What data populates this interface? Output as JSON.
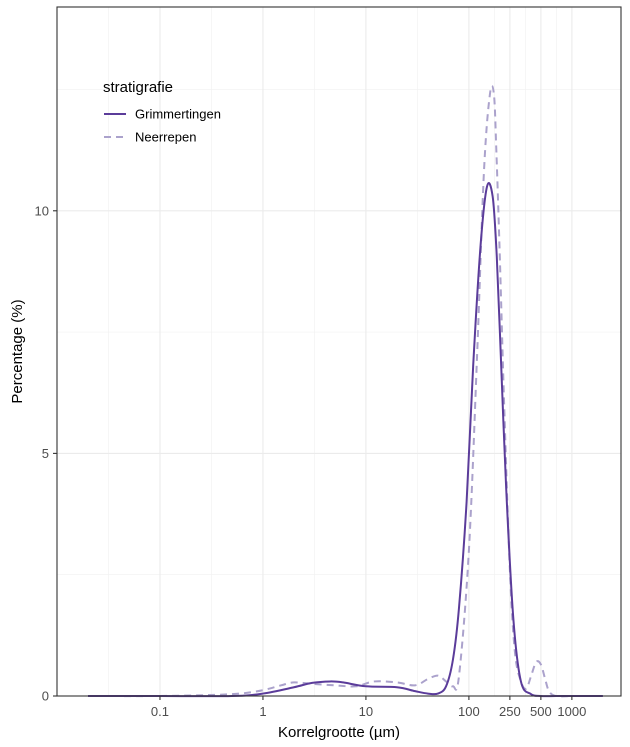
{
  "chart_data": {
    "type": "line",
    "title": "",
    "xlabel": "Korrelgrootte (µm)",
    "ylabel": "Percentage (%)",
    "x_scale": "log10",
    "xlim": [
      0.01,
      3000
    ],
    "ylim": [
      0,
      14.2
    ],
    "x_ticks": [
      0.1,
      1,
      10,
      100,
      250,
      500,
      1000
    ],
    "x_tick_labels": [
      "0.1",
      "1",
      "10",
      "100",
      "250",
      "500",
      "1000"
    ],
    "y_ticks": [
      0,
      5,
      10
    ],
    "y_tick_labels": [
      "0",
      "5",
      "10"
    ],
    "grid": true,
    "legend": {
      "title": "stratigrafie",
      "position": "top-left"
    },
    "series": [
      {
        "name": "Grimmertingen",
        "color": "#5b3c9a",
        "style": "solid",
        "x": [
          0.02,
          0.1,
          0.5,
          1,
          2,
          3,
          4.5,
          6,
          10,
          20,
          30,
          40,
          50,
          60,
          70,
          80,
          95,
          110,
          130,
          150,
          170,
          185,
          200,
          230,
          270,
          320,
          400,
          500,
          700,
          1000,
          2000
        ],
        "y": [
          0,
          0,
          0,
          0.05,
          0.18,
          0.27,
          0.3,
          0.28,
          0.2,
          0.18,
          0.1,
          0.05,
          0.05,
          0.2,
          0.75,
          1.8,
          4.0,
          6.8,
          9.3,
          10.5,
          10.3,
          9.2,
          7.5,
          4.3,
          1.6,
          0.3,
          0.04,
          0,
          0,
          0,
          0
        ]
      },
      {
        "name": "Neerrepen",
        "color": "#aba2cc",
        "style": "dashed",
        "x": [
          0.02,
          0.1,
          0.3,
          0.6,
          1,
          1.5,
          2,
          3,
          5,
          8,
          12,
          20,
          30,
          40,
          50,
          60,
          70,
          80,
          100,
          120,
          140,
          160,
          175,
          185,
          200,
          220,
          250,
          280,
          320,
          360,
          400,
          450,
          500,
          550,
          600,
          700,
          1000
        ],
        "y": [
          0,
          0,
          0.02,
          0.05,
          0.12,
          0.22,
          0.28,
          0.25,
          0.22,
          0.2,
          0.3,
          0.28,
          0.22,
          0.35,
          0.42,
          0.3,
          0.2,
          0.4,
          3.0,
          7.0,
          10.8,
          12.4,
          12.4,
          11.2,
          9.0,
          6.0,
          2.6,
          0.9,
          0.3,
          0.15,
          0.4,
          0.7,
          0.65,
          0.35,
          0.1,
          0,
          0
        ]
      }
    ]
  }
}
